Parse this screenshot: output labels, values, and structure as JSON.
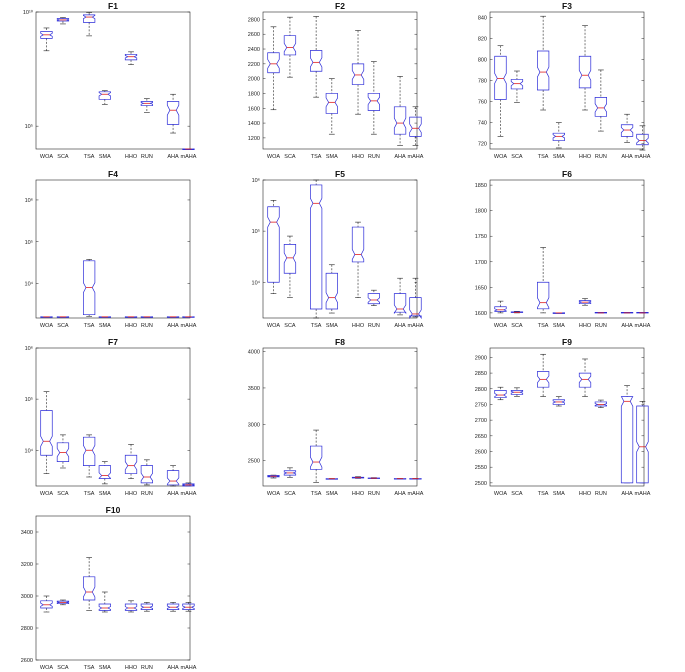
{
  "figure": {
    "panel_count": 10
  },
  "colors": {
    "box": "#2b2bd8",
    "median": "#e02020",
    "whisker": "#222222",
    "axis": "#262626"
  },
  "chart_data": [
    {
      "type": "boxplot",
      "title": "F1",
      "yscale": "log",
      "ylim": [
        10000,
        10000000000
      ],
      "yticks": [
        100000,
        10000000000
      ],
      "ytick_labels": [
        "10⁵",
        "10¹⁰"
      ],
      "categories": [
        "WOA",
        "SCA",
        "TSA",
        "SMA",
        "HHO",
        "RUN",
        "AHA",
        "mAHA"
      ],
      "boxes": [
        {
          "min": 200000000,
          "q1": 700000000,
          "median": 1000000000,
          "q3": 1400000000,
          "max": 2000000000
        },
        {
          "min": 3000000000,
          "q1": 4000000000,
          "median": 4500000000,
          "q3": 5200000000,
          "max": 5700000000
        },
        {
          "min": 900000000,
          "q1": 3500000000,
          "median": 6000000000,
          "q3": 7500000000,
          "max": 9500000000
        },
        {
          "min": 900000,
          "q1": 1500000,
          "median": 2500000,
          "q3": 3200000,
          "max": 3600000
        },
        {
          "min": 50000000,
          "q1": 80000000,
          "median": 110000000,
          "q3": 140000000,
          "max": 180000000
        },
        {
          "min": 400000,
          "q1": 800000,
          "median": 1000000,
          "q3": 1200000,
          "max": 1600000
        },
        {
          "min": 50000,
          "q1": 120000,
          "median": 500000,
          "q3": 1200000,
          "max": 2500000
        },
        {
          "min": 10000,
          "q1": 10000,
          "median": 10000,
          "q3": 10000,
          "max": 10000
        }
      ]
    },
    {
      "type": "boxplot",
      "title": "F2",
      "yscale": "linear",
      "ylim": [
        1050,
        2900
      ],
      "yticks": [
        1200,
        1400,
        1600,
        1800,
        2000,
        2200,
        2400,
        2600,
        2800
      ],
      "categories": [
        "WOA",
        "SCA",
        "TSA",
        "SMA",
        "HHO",
        "RUN",
        "AHA",
        "mAHA"
      ],
      "boxes": [
        {
          "min": 1580,
          "q1": 2080,
          "median": 2200,
          "q3": 2350,
          "max": 2700
        },
        {
          "min": 2020,
          "q1": 2320,
          "median": 2420,
          "q3": 2580,
          "max": 2830
        },
        {
          "min": 1750,
          "q1": 2100,
          "median": 2220,
          "q3": 2380,
          "max": 2840
        },
        {
          "min": 1250,
          "q1": 1530,
          "median": 1680,
          "q3": 1800,
          "max": 2000
        },
        {
          "min": 1520,
          "q1": 1920,
          "median": 2050,
          "q3": 2200,
          "max": 2650
        },
        {
          "min": 1250,
          "q1": 1570,
          "median": 1700,
          "q3": 1800,
          "max": 2230
        },
        {
          "min": 1100,
          "q1": 1250,
          "median": 1400,
          "q3": 1620,
          "max": 2030
        },
        {
          "min": 1100,
          "q1": 1220,
          "median": 1330,
          "q3": 1480,
          "max": 1620
        }
      ]
    },
    {
      "type": "boxplot",
      "title": "F3",
      "yscale": "linear",
      "ylim": [
        715,
        845
      ],
      "yticks": [
        720,
        740,
        760,
        780,
        800,
        820,
        840
      ],
      "categories": [
        "WOA",
        "SCA",
        "TSA",
        "SMA",
        "HHO",
        "RUN",
        "AHA",
        "mAHA"
      ],
      "boxes": [
        {
          "min": 727,
          "q1": 762,
          "median": 782,
          "q3": 803,
          "max": 813
        },
        {
          "min": 759,
          "q1": 772,
          "median": 777,
          "q3": 781,
          "max": 789
        },
        {
          "min": 752,
          "q1": 771,
          "median": 788,
          "q3": 808,
          "max": 841
        },
        {
          "min": 716,
          "q1": 723,
          "median": 727,
          "q3": 730,
          "max": 740
        },
        {
          "min": 752,
          "q1": 773,
          "median": 785,
          "q3": 803,
          "max": 832
        },
        {
          "min": 732,
          "q1": 746,
          "median": 754,
          "q3": 764,
          "max": 790
        },
        {
          "min": 721,
          "q1": 727,
          "median": 733,
          "q3": 738,
          "max": 748
        },
        {
          "min": 714,
          "q1": 719,
          "median": 723,
          "q3": 729,
          "max": 737
        }
      ]
    },
    {
      "type": "boxplot",
      "title": "F4",
      "yscale": "log",
      "ylim": [
        1500,
        3000000
      ],
      "yticks": [
        10000,
        100000,
        1000000
      ],
      "ytick_labels": [
        "10⁴",
        "10⁵",
        "10⁶"
      ],
      "categories": [
        "WOA",
        "SCA",
        "TSA",
        "SMA",
        "HHO",
        "RUN",
        "AHA",
        "mAHA"
      ],
      "boxes": [
        {
          "min": 1600,
          "q1": 1600,
          "median": 1600,
          "q3": 1600,
          "max": 1600
        },
        {
          "min": 1600,
          "q1": 1600,
          "median": 1600,
          "q3": 1600,
          "max": 1600
        },
        {
          "min": 1650,
          "q1": 1800,
          "median": 8000,
          "q3": 35000,
          "max": 38000
        },
        {
          "min": 1600,
          "q1": 1600,
          "median": 1600,
          "q3": 1600,
          "max": 1600
        },
        {
          "min": 1600,
          "q1": 1600,
          "median": 1600,
          "q3": 1600,
          "max": 1600
        },
        {
          "min": 1600,
          "q1": 1600,
          "median": 1600,
          "q3": 1600,
          "max": 1600
        },
        {
          "min": 1600,
          "q1": 1600,
          "median": 1600,
          "q3": 1600,
          "max": 1600
        },
        {
          "min": 1600,
          "q1": 1600,
          "median": 1600,
          "q3": 1600,
          "max": 1600
        }
      ]
    },
    {
      "type": "boxplot",
      "title": "F5",
      "yscale": "log",
      "ylim": [
        2000,
        1000000
      ],
      "yticks": [
        10000,
        100000,
        1000000
      ],
      "ytick_labels": [
        "10⁴",
        "10⁵",
        "10⁶"
      ],
      "categories": [
        "WOA",
        "SCA",
        "TSA",
        "SMA",
        "HHO",
        "RUN",
        "AHA",
        "mAHA"
      ],
      "boxes": [
        {
          "min": 6000,
          "q1": 10000,
          "median": 150000,
          "q3": 300000,
          "max": 400000
        },
        {
          "min": 5000,
          "q1": 15000,
          "median": 30000,
          "q3": 55000,
          "max": 80000
        },
        {
          "min": 2000,
          "q1": 3000,
          "median": 350000,
          "q3": 800000,
          "max": 1000000
        },
        {
          "min": 2500,
          "q1": 3000,
          "median": 5000,
          "q3": 15000,
          "max": 22000
        },
        {
          "min": 5000,
          "q1": 25000,
          "median": 35000,
          "q3": 120000,
          "max": 150000
        },
        {
          "min": 3500,
          "q1": 3800,
          "median": 4500,
          "q3": 6000,
          "max": 7000
        },
        {
          "min": 2300,
          "q1": 2600,
          "median": 3000,
          "q3": 6000,
          "max": 12000
        },
        {
          "min": 2100,
          "q1": 2200,
          "median": 2400,
          "q3": 5000,
          "max": 12000
        }
      ]
    },
    {
      "type": "boxplot",
      "title": "F6",
      "yscale": "linear",
      "ylim": [
        1590,
        1860
      ],
      "yticks": [
        1600,
        1650,
        1700,
        1750,
        1800,
        1850
      ],
      "categories": [
        "WOA",
        "SCA",
        "TSA",
        "SMA",
        "HHO",
        "RUN",
        "AHA",
        "mAHA"
      ],
      "boxes": [
        {
          "min": 1600,
          "q1": 1603,
          "median": 1606,
          "q3": 1612,
          "max": 1623
        },
        {
          "min": 1600,
          "q1": 1601,
          "median": 1601,
          "q3": 1602,
          "max": 1603
        },
        {
          "min": 1600,
          "q1": 1608,
          "median": 1620,
          "q3": 1660,
          "max": 1728
        },
        {
          "min": 1600,
          "q1": 1600,
          "median": 1600,
          "q3": 1600,
          "max": 1600
        },
        {
          "min": 1615,
          "q1": 1618,
          "median": 1621,
          "q3": 1624,
          "max": 1628
        },
        {
          "min": 1600,
          "q1": 1600,
          "median": 1600,
          "q3": 1601,
          "max": 1601
        },
        {
          "min": 1600,
          "q1": 1600,
          "median": 1600,
          "q3": 1601,
          "max": 1601
        },
        {
          "min": 1600,
          "q1": 1600,
          "median": 1600,
          "q3": 1601,
          "max": 1601
        }
      ]
    },
    {
      "type": "boxplot",
      "title": "F7",
      "yscale": "log",
      "ylim": [
        2000,
        1000000
      ],
      "yticks": [
        10000,
        100000,
        1000000
      ],
      "ytick_labels": [
        "10⁴",
        "10⁵",
        "10⁶"
      ],
      "categories": [
        "WOA",
        "SCA",
        "TSA",
        "SMA",
        "HHO",
        "RUN",
        "AHA",
        "mAHA"
      ],
      "boxes": [
        {
          "min": 3500,
          "q1": 8000,
          "median": 15000,
          "q3": 60000,
          "max": 140000
        },
        {
          "min": 4500,
          "q1": 6000,
          "median": 9000,
          "q3": 14000,
          "max": 20000
        },
        {
          "min": 3000,
          "q1": 5000,
          "median": 10000,
          "q3": 18000,
          "max": 20000
        },
        {
          "min": 2200,
          "q1": 2800,
          "median": 3200,
          "q3": 5000,
          "max": 6000
        },
        {
          "min": 2800,
          "q1": 3500,
          "median": 5000,
          "q3": 8000,
          "max": 13000
        },
        {
          "min": 2100,
          "q1": 2300,
          "median": 3000,
          "q3": 5000,
          "max": 6500
        },
        {
          "min": 2000,
          "q1": 2100,
          "median": 2500,
          "q3": 4000,
          "max": 5000
        },
        {
          "min": 2000,
          "q1": 2000,
          "median": 2100,
          "q3": 2200,
          "max": 2300
        }
      ]
    },
    {
      "type": "boxplot",
      "title": "F8",
      "yscale": "linear",
      "ylim": [
        2150,
        4050
      ],
      "yticks": [
        2500,
        3000,
        3500,
        4000
      ],
      "categories": [
        "WOA",
        "SCA",
        "TSA",
        "SMA",
        "HHO",
        "RUN",
        "AHA",
        "mAHA"
      ],
      "boxes": [
        {
          "min": 2260,
          "q1": 2275,
          "median": 2285,
          "q3": 2295,
          "max": 2300
        },
        {
          "min": 2270,
          "q1": 2300,
          "median": 2330,
          "q3": 2360,
          "max": 2400
        },
        {
          "min": 2200,
          "q1": 2380,
          "median": 2480,
          "q3": 2700,
          "max": 2920
        },
        {
          "min": 2250,
          "q1": 2250,
          "median": 2250,
          "q3": 2251,
          "max": 2252
        },
        {
          "min": 2255,
          "q1": 2260,
          "median": 2265,
          "q3": 2270,
          "max": 2278
        },
        {
          "min": 2252,
          "q1": 2255,
          "median": 2258,
          "q3": 2261,
          "max": 2265
        },
        {
          "min": 2250,
          "q1": 2250,
          "median": 2251,
          "q3": 2252,
          "max": 2253
        },
        {
          "min": 2250,
          "q1": 2250,
          "median": 2251,
          "q3": 2252,
          "max": 2253
        }
      ]
    },
    {
      "type": "boxplot",
      "title": "F9",
      "yscale": "linear",
      "ylim": [
        2490,
        2930
      ],
      "yticks": [
        2500,
        2550,
        2600,
        2650,
        2700,
        2750,
        2800,
        2850,
        2900
      ],
      "categories": [
        "WOA",
        "SCA",
        "TSA",
        "SMA",
        "HHO",
        "RUN",
        "AHA",
        "mAHA"
      ],
      "boxes": [
        {
          "min": 2765,
          "q1": 2772,
          "median": 2780,
          "q3": 2795,
          "max": 2805
        },
        {
          "min": 2776,
          "q1": 2782,
          "median": 2789,
          "q3": 2795,
          "max": 2803
        },
        {
          "min": 2775,
          "q1": 2805,
          "median": 2830,
          "q3": 2855,
          "max": 2910
        },
        {
          "min": 2745,
          "q1": 2750,
          "median": 2758,
          "q3": 2765,
          "max": 2775
        },
        {
          "min": 2775,
          "q1": 2805,
          "median": 2830,
          "q3": 2850,
          "max": 2895
        },
        {
          "min": 2740,
          "q1": 2745,
          "median": 2750,
          "q3": 2758,
          "max": 2764
        },
        {
          "min": 2500,
          "q1": 2500,
          "median": 2760,
          "q3": 2775,
          "max": 2810
        },
        {
          "min": 2500,
          "q1": 2500,
          "median": 2615,
          "q3": 2745,
          "max": 2760
        }
      ]
    },
    {
      "type": "boxplot",
      "title": "F10",
      "yscale": "linear",
      "ylim": [
        2600,
        3500
      ],
      "yticks": [
        2600,
        2800,
        3000,
        3200,
        3400
      ],
      "categories": [
        "WOA",
        "SCA",
        "TSA",
        "SMA",
        "HHO",
        "RUN",
        "AHA",
        "mAHA"
      ],
      "boxes": [
        {
          "min": 2900,
          "q1": 2925,
          "median": 2945,
          "q3": 2970,
          "max": 3000
        },
        {
          "min": 2945,
          "q1": 2952,
          "median": 2960,
          "q3": 2968,
          "max": 2975
        },
        {
          "min": 2910,
          "q1": 2975,
          "median": 3025,
          "q3": 3120,
          "max": 3240
        },
        {
          "min": 2900,
          "q1": 2910,
          "median": 2925,
          "q3": 2950,
          "max": 3025
        },
        {
          "min": 2900,
          "q1": 2910,
          "median": 2925,
          "q3": 2950,
          "max": 2970
        },
        {
          "min": 2905,
          "q1": 2915,
          "median": 2930,
          "q3": 2950,
          "max": 2960
        },
        {
          "min": 2905,
          "q1": 2915,
          "median": 2930,
          "q3": 2950,
          "max": 2960
        },
        {
          "min": 2905,
          "q1": 2915,
          "median": 2930,
          "q3": 2950,
          "max": 2960
        }
      ]
    }
  ]
}
